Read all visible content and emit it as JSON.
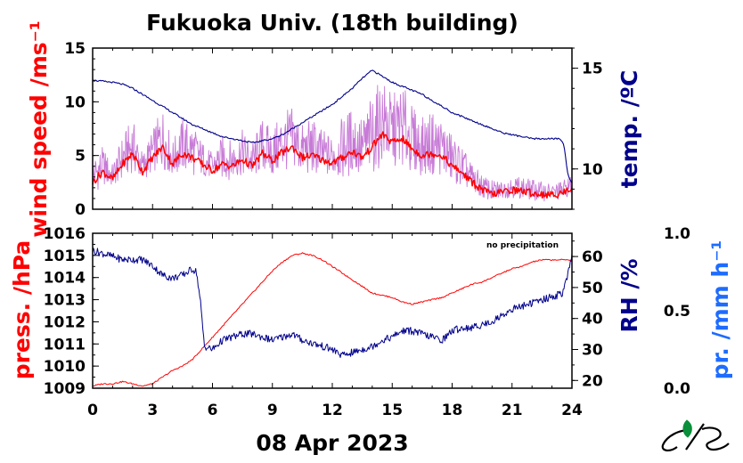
{
  "title": "Fukuoka Univ. (18th building)",
  "date_label": "08 Apr 2023",
  "note": "no precipitation",
  "colors": {
    "red": "#ff0000",
    "blue": "#00008b",
    "violet": "#c77ad6",
    "light_blue": "#1e6cff"
  },
  "chart_data": [
    {
      "type": "line",
      "panel": "top",
      "x_ticks": [
        "0",
        "3",
        "6",
        "9",
        "12",
        "15",
        "18",
        "21",
        "24"
      ],
      "xlim": [
        0,
        24
      ],
      "left_axis": {
        "label": "wind speed /ms⁻¹",
        "ticks": [
          "0",
          "5",
          "10",
          "15"
        ],
        "ylim": [
          0,
          15
        ]
      },
      "right_axis": {
        "label": "temp. /ºC",
        "ticks": [
          "10",
          "15"
        ],
        "ylim": [
          8.0,
          16.0
        ]
      },
      "series": [
        {
          "axis": "left",
          "style": "gust",
          "x": [
            0,
            0.5,
            1,
            1.5,
            2,
            2.5,
            3,
            3.5,
            4,
            4.5,
            5,
            5.5,
            6,
            6.5,
            7,
            7.5,
            8,
            8.5,
            9,
            9.5,
            10,
            10.5,
            11,
            11.5,
            12,
            12.5,
            13,
            13.5,
            14,
            14.5,
            15,
            15.5,
            16,
            16.5,
            17,
            17.5,
            18,
            18.5,
            19,
            19.5,
            20,
            20.5,
            21,
            21.5,
            22,
            22.5,
            23,
            23.5,
            24
          ],
          "y": [
            4.5,
            5.5,
            4,
            6.5,
            8,
            5,
            7,
            9,
            6,
            8,
            7.5,
            6,
            5,
            6.5,
            6,
            7,
            6,
            8,
            7,
            8.5,
            9,
            7.5,
            8,
            7,
            6.5,
            8,
            9,
            8,
            10,
            11.5,
            10,
            11,
            9,
            8,
            8.5,
            8,
            6.5,
            5.5,
            4,
            3,
            2.5,
            2.5,
            3,
            2.8,
            2.6,
            2.4,
            2.2,
            2.5,
            3
          ]
        },
        {
          "axis": "left",
          "style": "mean",
          "x": [
            0,
            0.5,
            1,
            1.5,
            2,
            2.5,
            3,
            3.5,
            4,
            4.5,
            5,
            5.5,
            6,
            6.5,
            7,
            7.5,
            8,
            8.5,
            9,
            9.5,
            10,
            10.5,
            11,
            11.5,
            12,
            12.5,
            13,
            13.5,
            14,
            14.5,
            15,
            15.5,
            16,
            16.5,
            17,
            17.5,
            18,
            18.5,
            19,
            19.5,
            20,
            20.5,
            21,
            21.5,
            22,
            22.5,
            23,
            23.5,
            24
          ],
          "y": [
            2.5,
            3.5,
            2.8,
            4.2,
            5.2,
            3.5,
            4.8,
            5.8,
            4.2,
            5.2,
            4.8,
            4.2,
            3.6,
            4.2,
            4.0,
            4.6,
            4.0,
            5.2,
            4.5,
            5.3,
            5.8,
            4.8,
            5.0,
            4.6,
            4.3,
            4.8,
            5.4,
            4.8,
            5.8,
            7.0,
            6.2,
            6.6,
            5.6,
            5.0,
            5.2,
            5.0,
            4.0,
            3.4,
            2.5,
            1.8,
            1.4,
            1.6,
            1.8,
            1.7,
            1.5,
            1.4,
            1.3,
            1.5,
            2.0
          ]
        },
        {
          "axis": "right",
          "style": "temp",
          "x": [
            0,
            0.5,
            1,
            1.5,
            2,
            2.5,
            3,
            3.5,
            4,
            4.5,
            5,
            5.5,
            6,
            6.5,
            7,
            7.5,
            8,
            8.5,
            9,
            9.5,
            10,
            10.5,
            11,
            11.5,
            12,
            12.5,
            13,
            13.5,
            14,
            14.5,
            15,
            15.5,
            16,
            16.5,
            17,
            17.5,
            18,
            18.5,
            19,
            19.5,
            20,
            20.5,
            21,
            21.5,
            22,
            22.5,
            23,
            23.4,
            23.6,
            23.8,
            24
          ],
          "y": [
            14.4,
            14.35,
            14.3,
            14.2,
            14.0,
            13.7,
            13.4,
            13.1,
            12.8,
            12.5,
            12.2,
            12.0,
            11.8,
            11.6,
            11.5,
            11.4,
            11.3,
            11.4,
            11.5,
            11.7,
            12.0,
            12.3,
            12.6,
            12.9,
            13.2,
            13.6,
            14.0,
            14.5,
            14.9,
            14.6,
            14.3,
            14.1,
            13.9,
            13.7,
            13.4,
            13.1,
            12.8,
            12.6,
            12.4,
            12.2,
            12.0,
            11.8,
            11.7,
            11.6,
            11.5,
            11.5,
            11.5,
            11.5,
            11.2,
            9.7,
            9.3
          ]
        }
      ]
    },
    {
      "type": "line",
      "panel": "bottom",
      "x_ticks": [
        "0",
        "3",
        "6",
        "9",
        "12",
        "15",
        "18",
        "21",
        "24"
      ],
      "xlim": [
        0,
        24
      ],
      "xlabel": "08 Apr 2023",
      "left_axis": {
        "label": "press. /hPa",
        "ticks": [
          "1009",
          "1010",
          "1011",
          "1012",
          "1013",
          "1014",
          "1015",
          "1016"
        ],
        "ylim": [
          1009,
          1016
        ]
      },
      "right_axis": {
        "label": "RH /%",
        "ticks": [
          "20",
          "30",
          "40",
          "50",
          "60"
        ],
        "ylim": [
          17.5,
          67.5
        ]
      },
      "precip_axis": {
        "label": "pr. /mm h⁻¹",
        "ticks": [
          "0.0",
          "0.5",
          "1.0"
        ],
        "ylim": [
          0,
          1
        ]
      },
      "annotation": "no precipitation",
      "series": [
        {
          "axis": "left",
          "style": "pressure",
          "x": [
            0,
            0.5,
            1,
            1.5,
            2,
            2.5,
            3,
            3.5,
            4,
            4.5,
            5,
            5.5,
            6,
            6.5,
            7,
            7.5,
            8,
            8.5,
            9,
            9.5,
            10,
            10.5,
            11,
            11.5,
            12,
            12.5,
            13,
            13.5,
            14,
            14.5,
            15,
            15.5,
            16,
            16.5,
            17,
            17.5,
            18,
            18.5,
            19,
            19.5,
            20,
            20.5,
            21,
            21.5,
            22,
            22.5,
            23,
            23.5,
            24
          ],
          "y": [
            1009.1,
            1009.2,
            1009.2,
            1009.3,
            1009.2,
            1009.1,
            1009.2,
            1009.5,
            1009.8,
            1010.0,
            1010.3,
            1010.8,
            1011.3,
            1011.8,
            1012.3,
            1012.8,
            1013.3,
            1013.8,
            1014.3,
            1014.7,
            1015.0,
            1015.1,
            1015.0,
            1014.8,
            1014.5,
            1014.2,
            1013.9,
            1013.6,
            1013.3,
            1013.2,
            1013.1,
            1012.9,
            1012.8,
            1012.9,
            1013.0,
            1013.1,
            1013.3,
            1013.5,
            1013.7,
            1013.8,
            1014.0,
            1014.2,
            1014.4,
            1014.5,
            1014.7,
            1014.8,
            1014.8,
            1014.8,
            1014.8
          ]
        },
        {
          "axis": "right",
          "style": "rh",
          "x": [
            0,
            0.5,
            1,
            1.5,
            2,
            2.5,
            3,
            3.5,
            4,
            4.5,
            5,
            5.2,
            5.4,
            5.6,
            6,
            6.5,
            7,
            7.5,
            8,
            8.5,
            9,
            9.5,
            10,
            10.5,
            11,
            11.5,
            12,
            12.5,
            13,
            13.5,
            14,
            14.5,
            15,
            15.5,
            16,
            16.5,
            17,
            17.5,
            18,
            18.5,
            19,
            19.5,
            20,
            20.5,
            21,
            21.5,
            22,
            22.5,
            23,
            23.5,
            23.8,
            24
          ],
          "y": [
            62,
            61,
            60,
            59,
            59,
            59,
            57,
            54,
            53,
            54,
            56,
            55,
            45,
            31,
            30,
            33,
            34,
            35,
            35,
            34,
            33,
            34,
            35,
            33,
            32,
            31,
            30,
            28,
            29,
            30,
            31,
            33,
            34,
            36,
            36,
            35,
            34,
            33,
            36,
            37,
            37,
            38,
            39,
            41,
            43,
            44,
            45,
            46,
            47,
            48,
            54,
            60
          ]
        }
      ]
    }
  ]
}
